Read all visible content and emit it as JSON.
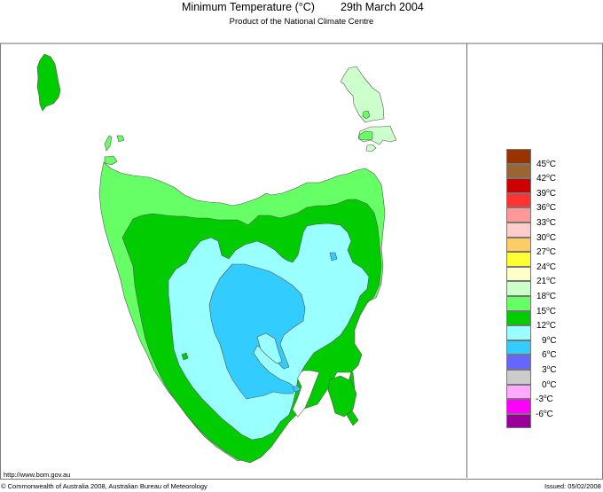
{
  "header": {
    "title": "Minimum Temperature (°C)",
    "date": "29th March 2004",
    "subtitle": "Product of the National Climate Centre"
  },
  "map": {
    "region": "Tasmania",
    "variable": "Minimum Temperature",
    "units": "°C",
    "colors": {
      "band_18_21": "#ccffcc",
      "band_15_18": "#66ff66",
      "band_12_15": "#00cc00",
      "band_9_12": "#99ffff",
      "band_6_9": "#33ccff"
    }
  },
  "legend": {
    "boxes": [
      {
        "color": "#993300"
      },
      {
        "color": "#996633"
      },
      {
        "color": "#cc0000"
      },
      {
        "color": "#ff3333"
      },
      {
        "color": "#ff9999"
      },
      {
        "color": "#ffcccc"
      },
      {
        "color": "#ffcc66"
      },
      {
        "color": "#ffff33"
      },
      {
        "color": "#ffffcc"
      },
      {
        "color": "#ccffcc"
      },
      {
        "color": "#66ff66"
      },
      {
        "color": "#00cc00"
      },
      {
        "color": "#99ffff"
      },
      {
        "color": "#33ccff"
      },
      {
        "color": "#6666ff"
      },
      {
        "color": "#cccccc"
      },
      {
        "color": "#ffaaff"
      },
      {
        "color": "#ff00ff"
      },
      {
        "color": "#990099"
      }
    ],
    "labels": [
      "45",
      "42",
      "39",
      "36",
      "33",
      "30",
      "27",
      "24",
      "21",
      "18",
      "15",
      "12",
      "9",
      "6",
      "3",
      "0",
      "-3",
      "-6"
    ],
    "unit": "C"
  },
  "footer": {
    "url": "http://www.bom.gov.au",
    "copyright": "© Commonwealth of Australia 2008, Australian Bureau of Meteorology",
    "issued": "Issued: 05/02/2008"
  }
}
